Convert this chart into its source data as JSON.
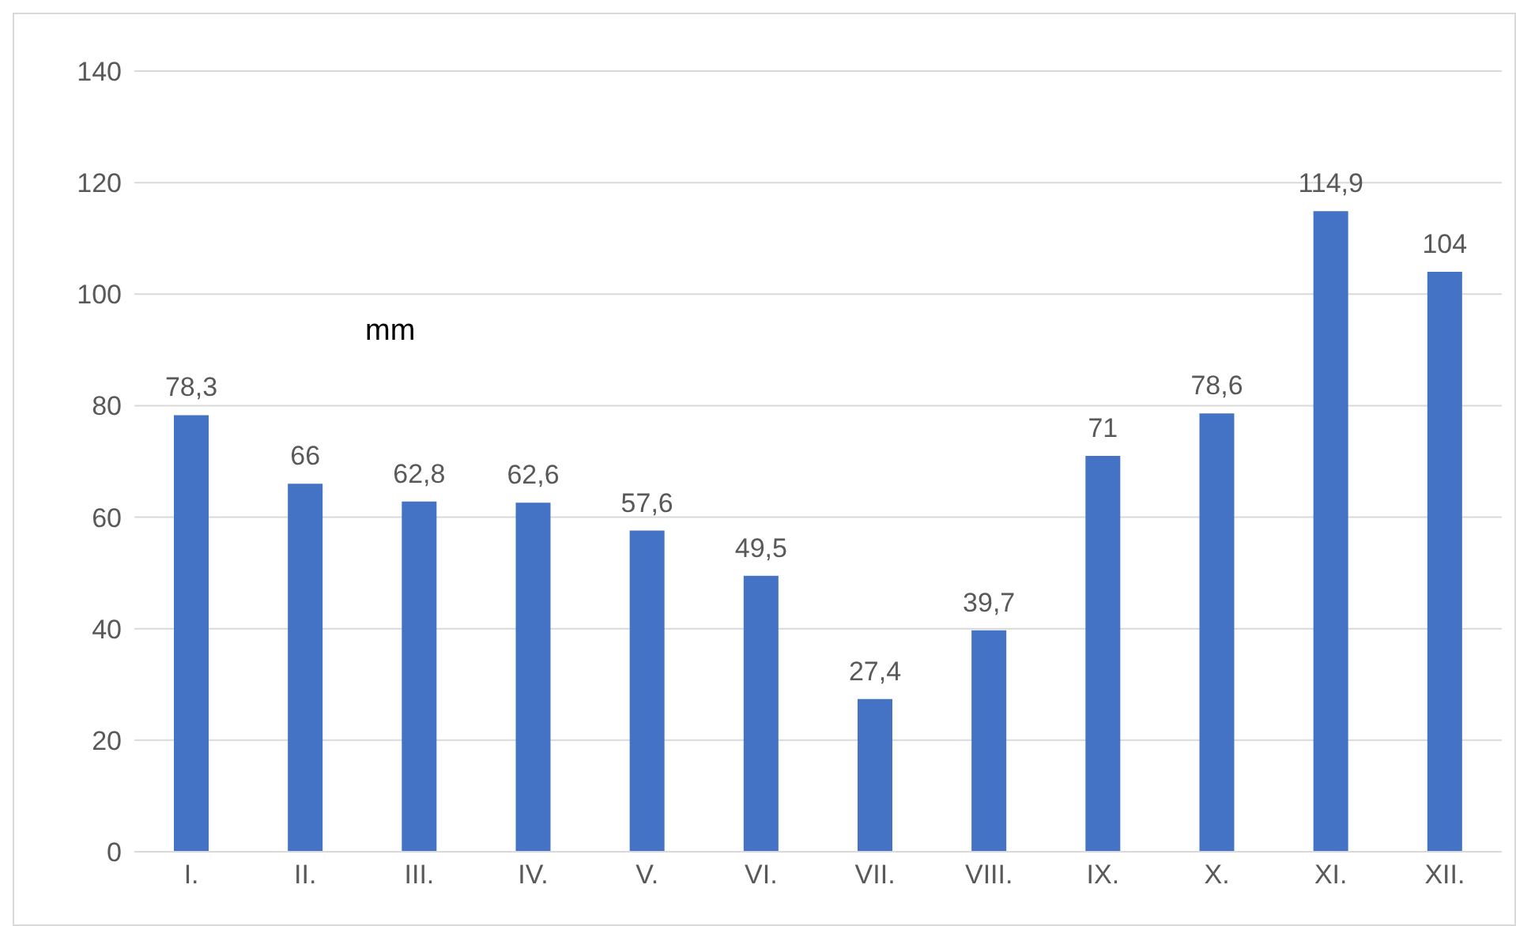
{
  "chart_data": {
    "type": "bar",
    "ylabel": "mm",
    "categories": [
      "I.",
      "II.",
      "III.",
      "IV.",
      "V.",
      "VI.",
      "VII.",
      "VIII.",
      "IX.",
      "X.",
      "XI.",
      "XII."
    ],
    "values": [
      78.3,
      66,
      62.8,
      62.6,
      57.6,
      49.5,
      27.4,
      39.7,
      71,
      78.6,
      114.9,
      104
    ],
    "value_labels": [
      "78,3",
      "66",
      "62,8",
      "62,6",
      "57,6",
      "49,5",
      "27,4",
      "39,7",
      "71",
      "78,6",
      "114,9",
      "104"
    ],
    "color": "#4472c4",
    "ylim": [
      0,
      140
    ],
    "yticks": [
      0,
      20,
      40,
      60,
      80,
      100,
      120,
      140
    ],
    "grid": "y"
  }
}
